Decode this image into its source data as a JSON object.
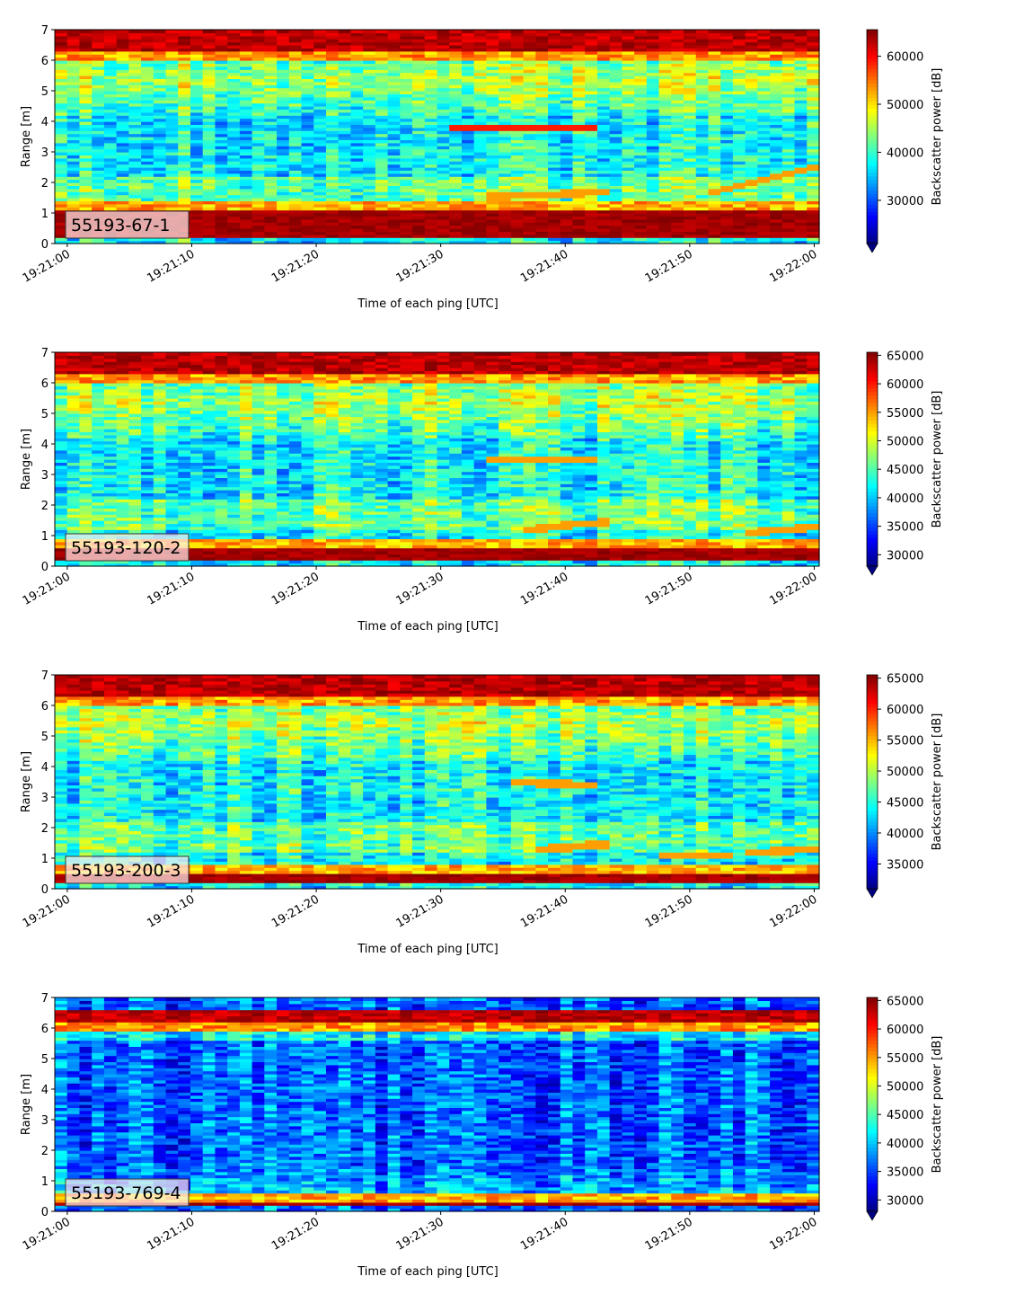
{
  "chart_data": [
    {
      "type": "heatmap",
      "label": "55193-67-1",
      "xlabel": "Time of each ping [UTC]",
      "ylabel": "Range [m]",
      "xlim": [
        "19:20:59",
        "19:22:00.4"
      ],
      "ylim": [
        0,
        7
      ],
      "xticks": [
        "19:21:00",
        "19:21:10",
        "19:21:20",
        "19:21:30",
        "19:21:40",
        "19:21:50",
        "19:22:00"
      ],
      "yticks": [
        0,
        1,
        2,
        3,
        4,
        5,
        6,
        7
      ],
      "colorbar": {
        "label": "Backscatter power [dB]",
        "range": [
          21000,
          65535
        ],
        "ticks": [
          30000,
          40000,
          50000,
          60000
        ],
        "colormap": "jet",
        "extend": "min"
      },
      "features": {
        "top_band_m": [
          6.3,
          7.0
        ],
        "bottom_band_m": [
          0.2,
          1.1
        ],
        "background": "mixed",
        "layers": [
          {
            "t0": 31,
            "t1": 43,
            "r0": 3.8,
            "r1": 3.8,
            "level": "high"
          },
          {
            "t0": 34,
            "t1": 44,
            "r0": 1.55,
            "r1": 1.7,
            "level": "med"
          },
          {
            "t0": 51,
            "t1": 60.5,
            "r0": 1.6,
            "r1": 2.55,
            "level": "med"
          }
        ]
      }
    },
    {
      "type": "heatmap",
      "label": "55193-120-2",
      "xlabel": "Time of each ping [UTC]",
      "ylabel": "Range [m]",
      "xlim": [
        "19:20:59",
        "19:22:00.4"
      ],
      "ylim": [
        0,
        7
      ],
      "xticks": [
        "19:21:00",
        "19:21:10",
        "19:21:20",
        "19:21:30",
        "19:21:40",
        "19:21:50",
        "19:22:00"
      ],
      "yticks": [
        0,
        1,
        2,
        3,
        4,
        5,
        6,
        7
      ],
      "colorbar": {
        "label": "Backscatter power [dB]",
        "range": [
          28000,
          65535
        ],
        "ticks": [
          30000,
          35000,
          40000,
          45000,
          50000,
          55000,
          60000,
          65000
        ],
        "colormap": "jet",
        "extend": "min"
      },
      "features": {
        "top_band_m": [
          6.3,
          7.0
        ],
        "bottom_band_m": [
          0.2,
          0.6
        ],
        "background": "mixed",
        "layers": [
          {
            "t0": 34,
            "t1": 43,
            "r0": 3.5,
            "r1": 3.5,
            "level": "med"
          },
          {
            "t0": 37,
            "t1": 44,
            "r0": 1.2,
            "r1": 1.5,
            "level": "med"
          },
          {
            "t0": 54,
            "t1": 60.5,
            "r0": 1.1,
            "r1": 1.3,
            "level": "med"
          }
        ]
      }
    },
    {
      "type": "heatmap",
      "label": "55193-200-3",
      "xlabel": "Time of each ping [UTC]",
      "ylabel": "Range [m]",
      "xlim": [
        "19:20:59",
        "19:22:00.4"
      ],
      "ylim": [
        0,
        7
      ],
      "xticks": [
        "19:21:00",
        "19:21:10",
        "19:21:20",
        "19:21:30",
        "19:21:40",
        "19:21:50",
        "19:22:00"
      ],
      "yticks": [
        0,
        1,
        2,
        3,
        4,
        5,
        6,
        7
      ],
      "colorbar": {
        "label": "Backscatter power [dB]",
        "range": [
          31000,
          65535
        ],
        "ticks": [
          35000,
          40000,
          45000,
          50000,
          55000,
          60000,
          65000
        ],
        "colormap": "jet",
        "extend": "min"
      },
      "features": {
        "top_band_m": [
          6.3,
          7.0
        ],
        "bottom_band_m": [
          0.2,
          0.5
        ],
        "background": "mixed",
        "layers": [
          {
            "t0": 36,
            "t1": 43,
            "r0": 3.5,
            "r1": 3.4,
            "level": "med"
          },
          {
            "t0": 38,
            "t1": 44,
            "r0": 1.3,
            "r1": 1.5,
            "level": "med"
          },
          {
            "t0": 48,
            "t1": 53,
            "r0": 1.1,
            "r1": 1.1,
            "level": "med"
          },
          {
            "t0": 54,
            "t1": 60.5,
            "r0": 1.2,
            "r1": 1.3,
            "level": "med"
          }
        ]
      }
    },
    {
      "type": "heatmap",
      "label": "55193-769-4",
      "xlabel": "Time of each ping [UTC]",
      "ylabel": "Range [m]",
      "xlim": [
        "19:20:59",
        "19:22:00.4"
      ],
      "ylim": [
        0,
        7
      ],
      "xticks": [
        "19:21:00",
        "19:21:10",
        "19:21:20",
        "19:21:30",
        "19:21:40",
        "19:21:50",
        "19:22:00"
      ],
      "yticks": [
        0,
        1,
        2,
        3,
        4,
        5,
        6,
        7
      ],
      "colorbar": {
        "label": "Backscatter power [dB]",
        "range": [
          28000,
          65535
        ],
        "ticks": [
          30000,
          35000,
          40000,
          45000,
          50000,
          55000,
          60000,
          65000
        ],
        "colormap": "jet",
        "extend": "min"
      },
      "features": {
        "top_band_m": [
          6.2,
          6.6
        ],
        "bottom_band_m": [
          0.2,
          0.35
        ],
        "background": "low",
        "layers": []
      }
    }
  ]
}
